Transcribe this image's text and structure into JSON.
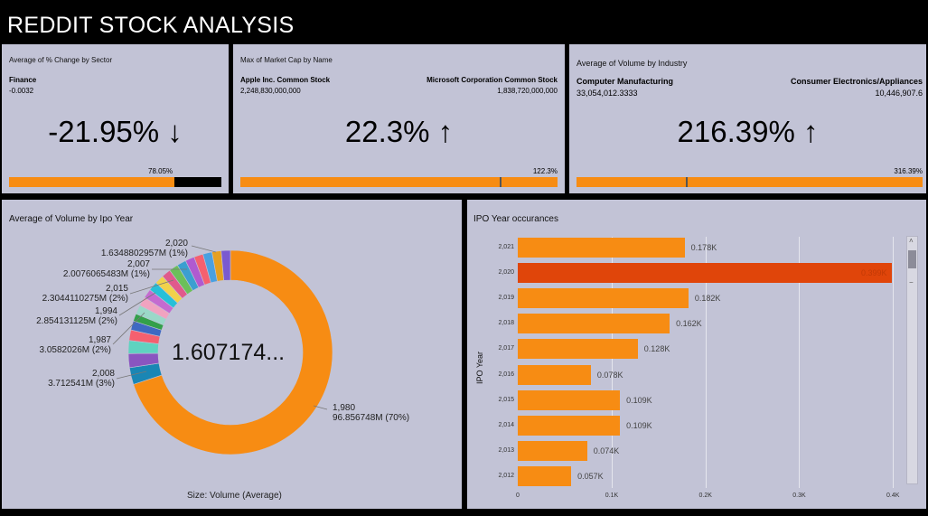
{
  "header": {
    "title": "REDDIT STOCK ANALYSIS"
  },
  "kpi_sector": {
    "title": "Average of % Change by Sector",
    "left_label": "Finance",
    "left_value": "-0.0032",
    "right_label": "",
    "right_value": "",
    "big_value": "-21.95% ↓",
    "bar_pct": "78.05%",
    "bar_fraction": 0.7805
  },
  "kpi_marketcap": {
    "title": "Max of Market Cap by Name",
    "left_label": "Apple Inc. Common Stock",
    "left_value": "2,248,830,000,000",
    "right_label": "Microsoft Corporation Common Stock",
    "right_value": "1,838,720,000,000",
    "big_value": "22.3% ↑",
    "bar_pct": "122.3%",
    "bar_fraction": 0.8177
  },
  "kpi_volume": {
    "title": "Average of Volume by Industry",
    "left_label": "Computer Manufacturing",
    "left_value": "33,054,012.3333",
    "right_label": "Consumer Electronics/Appliances",
    "right_value": "10,446,907.6",
    "big_value": "216.39% ↑",
    "bar_pct": "316.39%",
    "bar_fraction": 0.316
  },
  "donut": {
    "title": "Average of Volume by Ipo Year",
    "center_value": "1.607174...",
    "caption": "Size: Volume (Average)",
    "labels": [
      {
        "year": "2,020",
        "value": "1.6348802957M (1%)"
      },
      {
        "year": "2,007",
        "value": "2.0076065483M (1%)"
      },
      {
        "year": "2,015",
        "value": "2.3044110275M (2%)"
      },
      {
        "year": "1,994",
        "value": "2.854131125M (2%)"
      },
      {
        "year": "1,987",
        "value": "3.0582026M (2%)"
      },
      {
        "year": "2,008",
        "value": "3.712541M (3%)"
      },
      {
        "year": "1,980",
        "value": "96.856748M (70%)"
      }
    ]
  },
  "ipo_chart": {
    "title": "IPO Year occurances",
    "y_axis_title": "IPO Year",
    "x_ticks": [
      "0",
      "0.1K",
      "0.2K",
      "0.3K",
      "0.4K"
    ]
  },
  "chart_data": [
    {
      "type": "pie",
      "title": "Average of Volume by Ipo Year",
      "categories": [
        "1,980",
        "2,008",
        "1,987",
        "1,994",
        "2,015",
        "2,007",
        "2,020"
      ],
      "values": [
        96.856748,
        3.712541,
        3.0582026,
        2.854131125,
        2.3044110275,
        2.0076065483,
        1.6348802957
      ],
      "colors": [
        "#f78c13",
        "#1a86b4",
        "#8a55c0",
        "#5fd3c0",
        "#f5606f",
        "#3e69c2",
        "#33a04a"
      ]
    },
    {
      "type": "bar",
      "title": "IPO Year occurances",
      "ylabel": "IPO Year",
      "categories": [
        "2,021",
        "2,020",
        "2,019",
        "2,018",
        "2,017",
        "2,016",
        "2,015",
        "2,014",
        "2,013",
        "2,012"
      ],
      "values": [
        0.178,
        0.399,
        0.182,
        0.162,
        0.128,
        0.078,
        0.109,
        0.109,
        0.074,
        0.057
      ],
      "labels": [
        "0.178K",
        "0.399K",
        "0.182K",
        "0.162K",
        "0.128K",
        "0.078K",
        "0.109K",
        "0.109K",
        "0.074K",
        "0.057K"
      ],
      "xlim": [
        0,
        0.4
      ],
      "highlight_index": 1,
      "colors": {
        "bar": "#f78c13",
        "highlight": "#e0450a"
      }
    }
  ]
}
